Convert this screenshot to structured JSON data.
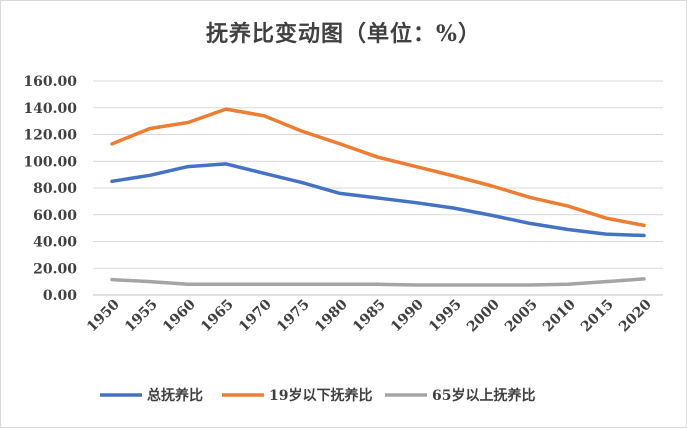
{
  "chart_data": {
    "type": "line",
    "title": "抚养比变动图（单位：%）",
    "categories": [
      "1950",
      "1955",
      "1960",
      "1965",
      "1970",
      "1975",
      "1980",
      "1985",
      "1990",
      "1995",
      "2000",
      "2005",
      "2010",
      "2015",
      "2020"
    ],
    "ylim": [
      0,
      160
    ],
    "yticks": [
      "0.00",
      "20.00",
      "40.00",
      "60.00",
      "80.00",
      "100.00",
      "120.00",
      "140.00",
      "160.00"
    ],
    "grid": true,
    "legend_position": "bottom",
    "series": [
      {
        "name": "总抚养比",
        "color": "#4472c4",
        "values": [
          85,
          89.5,
          96,
          98,
          91,
          84,
          76,
          72.5,
          69,
          65,
          59.5,
          53.5,
          49,
          45.5,
          44.5
        ]
      },
      {
        "name": "19岁以下抚养比",
        "color": "#ed7d31",
        "values": [
          113,
          124.5,
          129,
          139,
          134,
          122.5,
          113,
          103,
          96,
          89,
          81.5,
          73,
          66.5,
          57.5,
          52
        ]
      },
      {
        "name": "65岁以上抚养比",
        "color": "#a5a5a5",
        "values": [
          11.5,
          10,
          8,
          8,
          8,
          8,
          8,
          8,
          7.5,
          7.5,
          7.5,
          7.5,
          8,
          10,
          12
        ]
      }
    ]
  }
}
